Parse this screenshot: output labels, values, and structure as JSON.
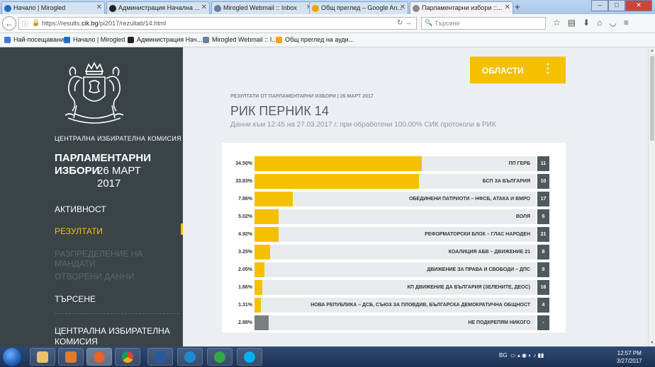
{
  "browser": {
    "tabs": [
      {
        "label": "Начало | Mirogled",
        "color": "#1e6fc0"
      },
      {
        "label": "Администрация Начална ...",
        "color": "#222222"
      },
      {
        "label": "Mirogled Webmail :: Inbox",
        "color": "#6a7fa0"
      },
      {
        "label": "Общ преглед – Google An...",
        "color": "#f4a300"
      },
      {
        "label": "Парламентарни избори ::...",
        "color": "#888888"
      }
    ],
    "url_prefix": "https://results.",
    "url_domain": "cik.bg",
    "url_path": "/pi2017/rezultati/14.html",
    "search_placeholder": "Търсене",
    "bookmarks": [
      {
        "label": "Най-посещавани",
        "color": "#3a7bd5"
      },
      {
        "label": "Начало | Mirogled",
        "color": "#1e6fc0"
      },
      {
        "label": "Администрация Нач...",
        "color": "#222222"
      },
      {
        "label": "Mirogled Webmail :: I...",
        "color": "#6a7fa0"
      },
      {
        "label": "Общ преглед на ауди...",
        "color": "#f4a300"
      }
    ]
  },
  "sidebar": {
    "commission": "ЦЕНТРАЛНА ИЗБИРАТЕЛНА КОМИСИЯ",
    "election_bold": "ПАРЛАМЕНТАРНИ ИЗБОРИ",
    "election_date": "26 МАРТ 2017",
    "menu": [
      {
        "label": "АКТИВНОСТ"
      },
      {
        "label": "РЕЗУЛТАТИ"
      },
      {
        "label": "РАЗПРЕДЕЛЕНИЕ НА МАНДАТИ"
      },
      {
        "label": "ОТВОРЕНИ ДАННИ"
      },
      {
        "label": "ТЪРСЕНЕ"
      }
    ],
    "footer": "ЦЕНТРАЛНА ИЗБИРАТЕЛНА КОМИСИЯ"
  },
  "main": {
    "regions_button": "ОБЛАСТИ",
    "results_label": "РЕЗУЛТАТИ ОТ ПАРЛАМЕНТАРНИ ИЗБОРИ | 26 МАРТ 2017",
    "rik_title": "РИК ПЕРНИК 14",
    "subtitle": "Данни към 12:45 на 27.03.2017 г. при обработени 100.00% СИК протоколи в РИК"
  },
  "chart_data": {
    "type": "bar",
    "categories": [
      "ПП ГЕРБ",
      "БСП ЗА БЪЛГАРИЯ",
      "ОБЕДИНЕНИ ПАТРИОТИ – НФСБ, АТАКА И ВМРО",
      "ВОЛЯ",
      "РЕФОРМАТОРСКИ БЛОК – ГЛАС НАРОДЕН",
      "КОАЛИЦИЯ АБВ – ДВИЖЕНИЕ 21",
      "ДВИЖЕНИЕ ЗА ПРАВА И СВОБОДИ – ДПС",
      "КП ДВИЖЕНИЕ ДА БЪЛГАРИЯ (ЗЕЛЕНИТЕ, ДЕОС)",
      "НОВА РЕПУБЛИКА – ДСБ, СЪЮЗ ЗА ПЛОВДИВ, БЪЛГАРСКА ДЕМОКРАТИЧНА ОБЩНОСТ",
      "НЕ ПОДКРЕПЯМ НИКОГО"
    ],
    "values": [
      34.5,
      33.83,
      7.86,
      5.02,
      4.92,
      3.25,
      2.05,
      1.66,
      1.31,
      2.88
    ],
    "labels": [
      "34.50%",
      "33.83%",
      "7.86%",
      "5.02%",
      "4.92%",
      "3.25%",
      "2.05%",
      "1.66%",
      "1.31%",
      "2.88%"
    ],
    "numbers": [
      "11",
      "10",
      "17",
      "6",
      "21",
      "8",
      "9",
      "16",
      "4",
      "-"
    ],
    "colors": {
      "party": "#f4c000",
      "none": "#7a7f81"
    }
  },
  "taskbar": {
    "lang": "BG",
    "time": "12:57 PM",
    "date": "3/27/2017"
  }
}
